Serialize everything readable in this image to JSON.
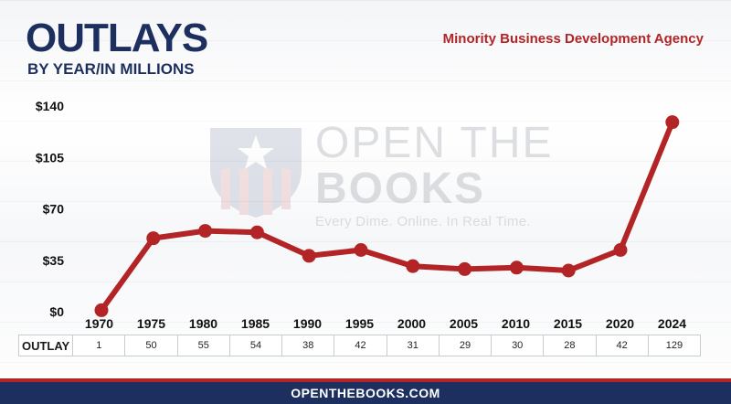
{
  "header": {
    "title": "OUTLAYS",
    "subtitle": "BY YEAR/IN MILLIONS",
    "agency": "Minority Business Development Agency"
  },
  "watermark": {
    "line1": "OPEN THE",
    "line2": "BOOKS",
    "tagline": "Every Dime. Online. In Real Time."
  },
  "table": {
    "row_label": "OUTLAY"
  },
  "footer": {
    "text": "OPENTHEBOOKS.COM"
  },
  "colors": {
    "line": "#b32426",
    "navy": "#1c2f5e",
    "accent_red": "#b32426"
  },
  "chart_data": {
    "type": "line",
    "title": "OUTLAYS",
    "subtitle": "BY YEAR/IN MILLIONS",
    "x": [
      "1970",
      "1975",
      "1980",
      "1985",
      "1990",
      "1995",
      "2000",
      "2005",
      "2010",
      "2015",
      "2020",
      "2024"
    ],
    "series": [
      {
        "values": [
          1,
          50,
          55,
          54,
          38,
          42,
          31,
          29,
          30,
          28,
          42,
          129
        ]
      }
    ],
    "y_ticks": [
      "$0",
      "$35",
      "$70",
      "$105",
      "$140"
    ],
    "ylim": [
      0,
      140
    ],
    "grid": false,
    "legend": "none"
  }
}
